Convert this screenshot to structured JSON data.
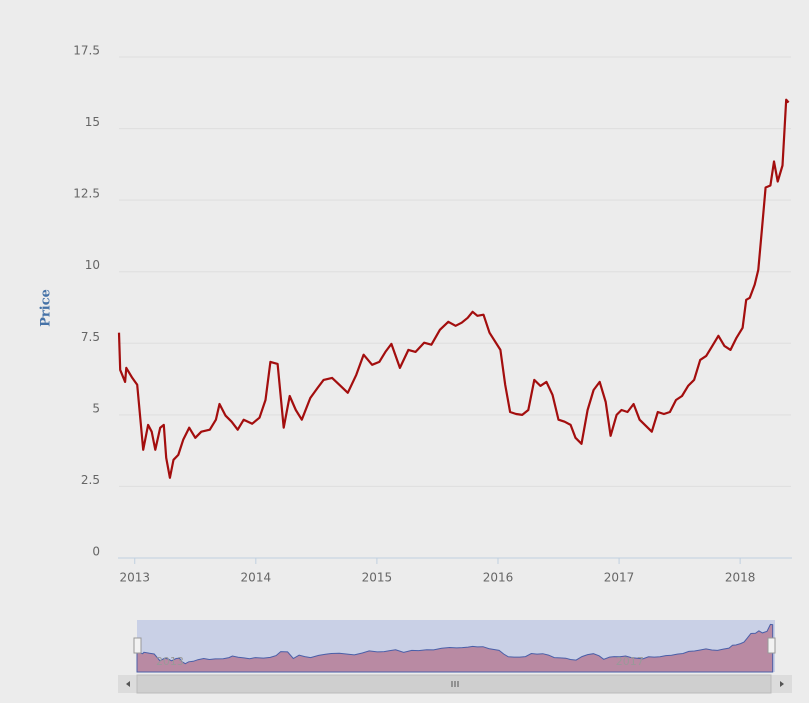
{
  "chart_data": {
    "type": "line",
    "y_label": "Price",
    "x": [
      2012.87,
      2012.88,
      2012.92,
      2012.93,
      2012.98,
      2013.02,
      2013.07,
      2013.11,
      2013.14,
      2013.17,
      2013.21,
      2013.24,
      2013.26,
      2013.29,
      2013.32,
      2013.36,
      2013.4,
      2013.45,
      2013.5,
      2013.55,
      2013.62,
      2013.67,
      2013.7,
      2013.75,
      2013.8,
      2013.85,
      2013.9,
      2013.97,
      2014.03,
      2014.08,
      2014.12,
      2014.18,
      2014.23,
      2014.28,
      2014.33,
      2014.38,
      2014.45,
      2014.51,
      2014.56,
      2014.63,
      2014.69,
      2014.76,
      2014.83,
      2014.89,
      2014.96,
      2015.02,
      2015.07,
      2015.12,
      2015.19,
      2015.26,
      2015.32,
      2015.39,
      2015.45,
      2015.52,
      2015.59,
      2015.65,
      2015.7,
      2015.75,
      2015.79,
      2015.83,
      2015.88,
      2015.93,
      2016.02,
      2016.06,
      2016.1,
      2016.15,
      2016.2,
      2016.25,
      2016.3,
      2016.35,
      2016.4,
      2016.45,
      2016.5,
      2016.55,
      2016.6,
      2016.64,
      2016.69,
      2016.74,
      2016.79,
      2016.84,
      2016.89,
      2016.93,
      2016.98,
      2017.02,
      2017.07,
      2017.12,
      2017.17,
      2017.22,
      2017.27,
      2017.32,
      2017.37,
      2017.42,
      2017.47,
      2017.52,
      2017.57,
      2017.62,
      2017.67,
      2017.72,
      2017.77,
      2017.82,
      2017.87,
      2017.92,
      2017.97,
      2018.02,
      2018.05,
      2018.08,
      2018.12,
      2018.15,
      2018.18,
      2018.21,
      2018.25,
      2018.28,
      2018.31,
      2018.35,
      2018.38,
      2018.4
    ],
    "series": [
      {
        "name": "Price",
        "color": "#a30e0e",
        "values": [
          7.87,
          6.57,
          6.15,
          6.64,
          6.29,
          6.05,
          3.78,
          4.65,
          4.41,
          3.78,
          4.55,
          4.65,
          3.5,
          2.8,
          3.43,
          3.6,
          4.13,
          4.55,
          4.2,
          4.41,
          4.48,
          4.83,
          5.38,
          4.97,
          4.76,
          4.48,
          4.83,
          4.69,
          4.9,
          5.52,
          6.85,
          6.78,
          4.55,
          5.66,
          5.17,
          4.83,
          5.59,
          5.94,
          6.22,
          6.29,
          6.05,
          5.77,
          6.4,
          7.1,
          6.75,
          6.85,
          7.2,
          7.48,
          6.64,
          7.27,
          7.2,
          7.52,
          7.45,
          7.97,
          8.25,
          8.11,
          8.22,
          8.39,
          8.6,
          8.46,
          8.5,
          7.87,
          7.27,
          6.05,
          5.1,
          5.03,
          5.0,
          5.17,
          6.22,
          6.01,
          6.15,
          5.7,
          4.83,
          4.76,
          4.65,
          4.2,
          3.99,
          5.17,
          5.87,
          6.15,
          5.45,
          4.27,
          5.0,
          5.17,
          5.1,
          5.38,
          4.83,
          4.62,
          4.41,
          5.1,
          5.03,
          5.1,
          5.52,
          5.66,
          6.01,
          6.22,
          6.92,
          7.06,
          7.41,
          7.76,
          7.41,
          7.27,
          7.69,
          8.04,
          9.02,
          9.09,
          9.55,
          10.07,
          11.47,
          12.94,
          13.01,
          13.85,
          13.15,
          13.71,
          16.01,
          15.91
        ]
      }
    ],
    "xlim": [
      2012.87,
      2018.42
    ],
    "xticks": [
      2013,
      2014,
      2015,
      2016,
      2017,
      2018
    ],
    "ylim": [
      0,
      17.5
    ],
    "yticks": [
      0,
      2.5,
      5,
      7.5,
      10,
      12.5,
      15,
      17.5
    ],
    "grid": true
  }
}
